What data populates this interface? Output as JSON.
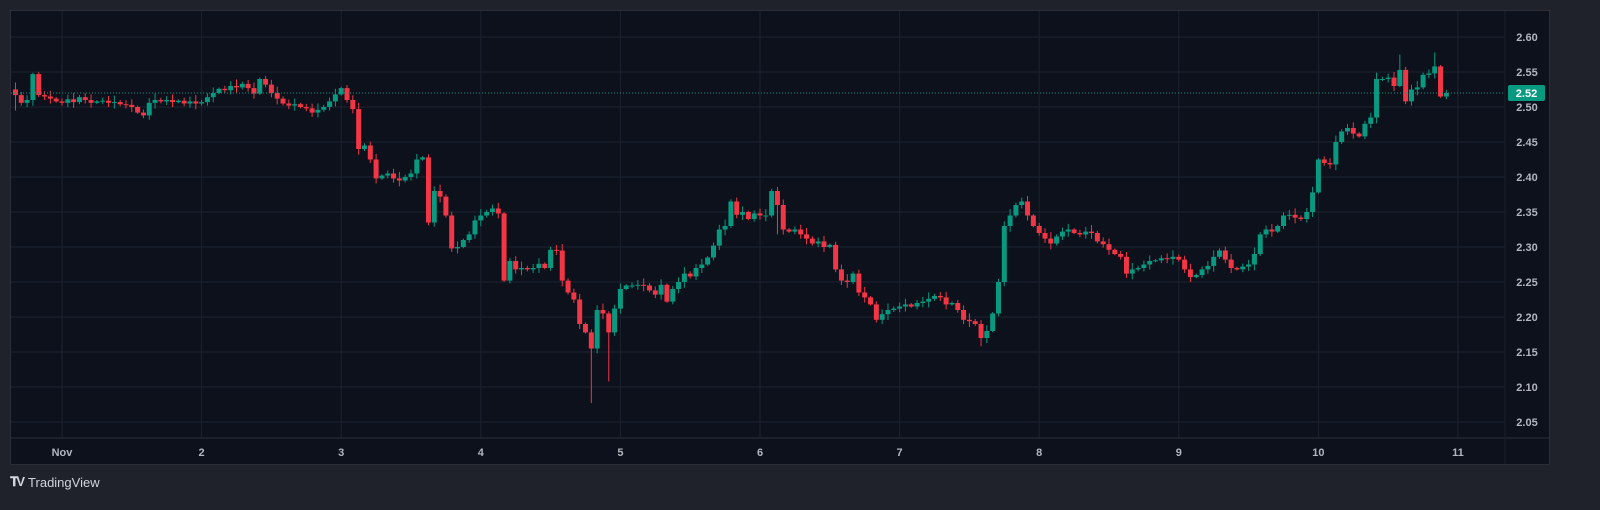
{
  "branding": {
    "logo_text": "TradingView",
    "logo_mark": "TV"
  },
  "colors": {
    "up": "#089981",
    "down": "#f23645",
    "grid": "#1c2230",
    "last_price_badge": "#089981"
  },
  "chart_data": {
    "type": "candlestick",
    "interval": "1h",
    "x_tick_labels": [
      "Nov",
      "2",
      "3",
      "4",
      "5",
      "6",
      "7",
      "8",
      "9",
      "10",
      "11"
    ],
    "y_tick_labels": [
      "2.60",
      "2.55",
      "2.50",
      "2.45",
      "2.40",
      "2.35",
      "2.30",
      "2.25",
      "2.20",
      "2.15",
      "2.10",
      "2.05"
    ],
    "ylim": [
      2.025,
      2.638
    ],
    "first_candle_hour_offset": -8,
    "last_price": "2.52",
    "closes": [
      2.517,
      2.506,
      2.51,
      2.547,
      2.517,
      2.515,
      2.512,
      2.508,
      2.506,
      2.511,
      2.507,
      2.514,
      2.51,
      2.506,
      2.508,
      2.509,
      2.506,
      2.507,
      2.504,
      2.503,
      2.5,
      2.492,
      2.488,
      2.506,
      2.51,
      2.508,
      2.51,
      2.507,
      2.509,
      2.505,
      2.508,
      2.505,
      2.507,
      2.514,
      2.52,
      2.526,
      2.524,
      2.53,
      2.528,
      2.533,
      2.527,
      2.519,
      2.54,
      2.532,
      2.52,
      2.512,
      2.505,
      2.502,
      2.504,
      2.5,
      2.498,
      2.492,
      2.496,
      2.5,
      2.508,
      2.518,
      2.527,
      2.51,
      2.497,
      2.44,
      2.445,
      2.425,
      2.398,
      2.402,
      2.405,
      2.398,
      2.395,
      2.4,
      2.405,
      2.425,
      2.428,
      2.335,
      2.38,
      2.372,
      2.345,
      2.298,
      2.3,
      2.31,
      2.318,
      2.338,
      2.345,
      2.35,
      2.355,
      2.348,
      2.252,
      2.28,
      2.268,
      2.27,
      2.268,
      2.27,
      2.276,
      2.27,
      2.296,
      2.295,
      2.252,
      2.235,
      2.225,
      2.19,
      2.178,
      2.155,
      2.21,
      2.205,
      2.178,
      2.212,
      2.24,
      2.245,
      2.245,
      2.246,
      2.245,
      2.238,
      2.232,
      2.246,
      2.222,
      2.24,
      2.25,
      2.262,
      2.258,
      2.27,
      2.275,
      2.285,
      2.302,
      2.325,
      2.33,
      2.365,
      2.346,
      2.35,
      2.34,
      2.348,
      2.345,
      2.345,
      2.38,
      2.36,
      2.325,
      2.322,
      2.325,
      2.318,
      2.312,
      2.305,
      2.308,
      2.3,
      2.303,
      2.268,
      2.252,
      2.25,
      2.262,
      2.235,
      2.228,
      2.218,
      2.196,
      2.204,
      2.21,
      2.212,
      2.215,
      2.218,
      2.215,
      2.22,
      2.222,
      2.226,
      2.23,
      2.228,
      2.218,
      2.22,
      2.21,
      2.196,
      2.194,
      2.19,
      2.17,
      2.18,
      2.205,
      2.25,
      2.33,
      2.345,
      2.36,
      2.365,
      2.345,
      2.33,
      2.32,
      2.312,
      2.305,
      2.315,
      2.322,
      2.325,
      2.32,
      2.318,
      2.322,
      2.32,
      2.308,
      2.304,
      2.296,
      2.29,
      2.286,
      2.262,
      2.268,
      2.27,
      2.275,
      2.28,
      2.281,
      2.284,
      2.283,
      2.286,
      2.282,
      2.268,
      2.257,
      2.26,
      2.268,
      2.273,
      2.286,
      2.295,
      2.282,
      2.27,
      2.268,
      2.272,
      2.275,
      2.29,
      2.318,
      2.325,
      2.322,
      2.33,
      2.345,
      2.346,
      2.342,
      2.34,
      2.35,
      2.378,
      2.425,
      2.42,
      2.418,
      2.45,
      2.465,
      2.47,
      2.462,
      2.458,
      2.476,
      2.485,
      2.54,
      2.54,
      2.542,
      2.53,
      2.553,
      2.508,
      2.525,
      2.528,
      2.546,
      2.548,
      2.558,
      2.515,
      2.52
    ],
    "first_open": 2.525,
    "wick_overrides": {
      "0": [
        2.535,
        2.495
      ],
      "3": [
        2.549,
        null
      ],
      "52": [
        null,
        2.485
      ],
      "99": [
        null,
        2.077
      ],
      "100": [
        null,
        2.148
      ],
      "102": [
        null,
        2.108
      ],
      "131": [
        null,
        2.318
      ],
      "166": [
        null,
        2.158
      ],
      "238": [
        2.575,
        null
      ],
      "244": [
        2.578,
        null
      ]
    }
  }
}
